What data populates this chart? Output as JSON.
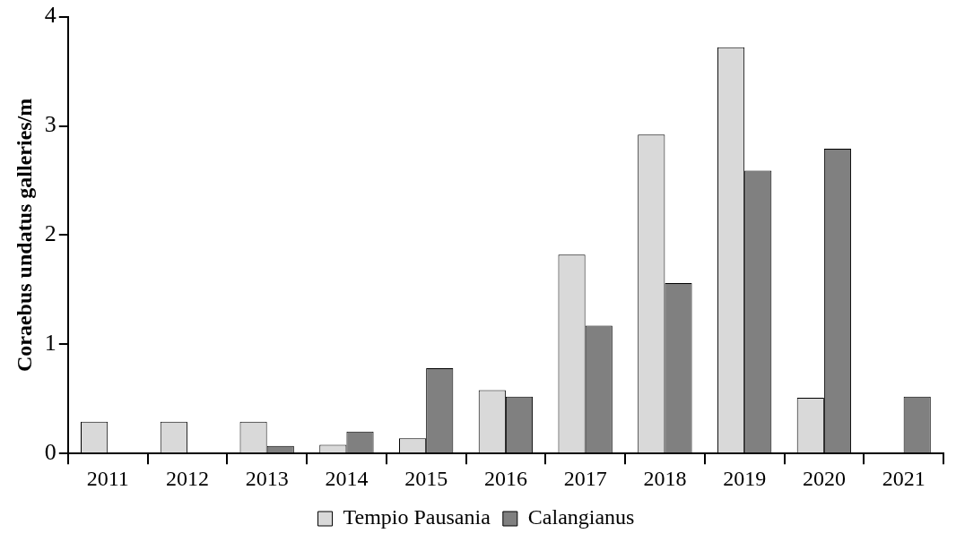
{
  "chart_data": {
    "type": "bar",
    "ylabel": "Coraebus undatus galleries/m",
    "categories": [
      "2011",
      "2012",
      "2013",
      "2014",
      "2015",
      "2016",
      "2017",
      "2018",
      "2019",
      "2020",
      "2021"
    ],
    "series": [
      {
        "name": "Tempio Pausania",
        "color": "#d9d9d9",
        "values": [
          0.29,
          0.29,
          0.29,
          0.08,
          0.14,
          0.58,
          1.82,
          2.92,
          3.72,
          0.51,
          0
        ]
      },
      {
        "name": "Calangianus",
        "color": "#808080",
        "values": [
          0,
          0,
          0.07,
          0.2,
          0.78,
          0.52,
          1.17,
          1.56,
          2.59,
          2.79,
          0.52
        ]
      }
    ],
    "ylim": [
      0,
      4
    ],
    "yticks": [
      0,
      1,
      2,
      3,
      4
    ],
    "grid": false,
    "legend": "bottom"
  }
}
